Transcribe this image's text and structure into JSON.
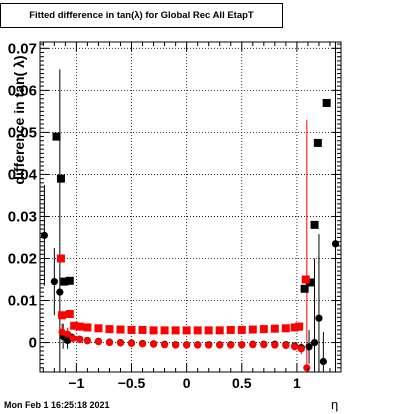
{
  "title": "Fitted difference in tan(λ) for Global Rec All EtapT",
  "footer": "Mon Feb  1 16:25:18 2021",
  "chart_data": {
    "type": "scatter",
    "title": "Fitted difference in tan(λ) for Global Rec All EtapT",
    "xlabel": "η",
    "ylabel": "difference in tan( λ)",
    "xlim": [
      -1.33,
      1.4
    ],
    "ylim": [
      -0.007,
      0.0715
    ],
    "xticks": [
      -1,
      -0.5,
      0,
      0.5,
      1
    ],
    "xtick_labels": [
      "−1",
      "−0.5",
      "0",
      "0.5",
      "1"
    ],
    "yticks": [
      0,
      0.01,
      0.02,
      0.03,
      0.04,
      0.05,
      0.06,
      0.07
    ],
    "ytick_labels": [
      "0",
      "0.01",
      "0.02",
      "0.03",
      "0.04",
      "0.05",
      "0.06",
      "0.07"
    ],
    "grid": true,
    "series": [
      {
        "color": "#000000",
        "marker": "square",
        "points": [
          [
            -1.18,
            0.049,
            0.0
          ],
          [
            -1.14,
            0.039,
            0.0
          ],
          [
            -1.11,
            0.0145,
            0.0
          ],
          [
            -1.06,
            0.0147,
            0.0
          ],
          [
            1.07,
            0.0128,
            0.0
          ],
          [
            1.12,
            0.0143,
            0.0
          ],
          [
            1.16,
            0.028,
            0.0
          ],
          [
            1.19,
            0.0475,
            0.0
          ],
          [
            1.27,
            0.057,
            0.0
          ]
        ]
      },
      {
        "color": "#ff0000",
        "marker": "square",
        "points": [
          [
            -1.14,
            0.02,
            0.0
          ],
          [
            -1.13,
            0.0065,
            0.0
          ],
          [
            -1.06,
            0.0068,
            0.0
          ],
          [
            -1.02,
            0.004,
            0.0
          ],
          [
            -0.97,
            0.0038,
            0.0
          ],
          [
            -0.9,
            0.0036,
            0.0
          ],
          [
            -0.8,
            0.0034,
            0.0
          ],
          [
            -0.7,
            0.0032,
            0.0
          ],
          [
            -0.6,
            0.0031,
            0.0
          ],
          [
            -0.5,
            0.003,
            0.0
          ],
          [
            -0.4,
            0.003,
            0.0
          ],
          [
            -0.3,
            0.0029,
            0.0
          ],
          [
            -0.2,
            0.0029,
            0.0
          ],
          [
            -0.1,
            0.0029,
            0.0
          ],
          [
            0.0,
            0.0029,
            0.0
          ],
          [
            0.1,
            0.0029,
            0.0
          ],
          [
            0.2,
            0.0029,
            0.0
          ],
          [
            0.3,
            0.0029,
            0.0
          ],
          [
            0.4,
            0.003,
            0.0
          ],
          [
            0.5,
            0.003,
            0.0
          ],
          [
            0.6,
            0.0031,
            0.0
          ],
          [
            0.7,
            0.0032,
            0.0
          ],
          [
            0.8,
            0.0033,
            0.0
          ],
          [
            0.9,
            0.0034,
            0.0
          ],
          [
            0.98,
            0.0036,
            0.0
          ],
          [
            1.02,
            0.0038,
            0.0
          ],
          [
            1.08,
            0.015,
            0.0
          ]
        ]
      },
      {
        "color": "#000000",
        "marker": "circle",
        "points": [
          [
            -1.29,
            0.0255,
            0.012
          ],
          [
            -1.2,
            0.0145,
            0.008
          ],
          [
            -1.15,
            0.012,
            0.053
          ],
          [
            -1.12,
            0.0015,
            0.003
          ],
          [
            -1.08,
            0.0005,
            0.002
          ],
          [
            -1.04,
            0.0012,
            0.001
          ],
          [
            -0.97,
            0.0008,
            0.0006
          ],
          [
            -0.9,
            0.0005,
            0.0005
          ],
          [
            -0.8,
            0.0003,
            0.0004
          ],
          [
            -0.7,
            0.0001,
            0.0004
          ],
          [
            -0.6,
            0.0,
            0.0004
          ],
          [
            -0.5,
            -0.0001,
            0.0004
          ],
          [
            -0.4,
            -0.0002,
            0.0004
          ],
          [
            -0.3,
            -0.0003,
            0.0004
          ],
          [
            -0.2,
            -0.0004,
            0.0004
          ],
          [
            -0.1,
            -0.0005,
            0.0004
          ],
          [
            0.0,
            -0.0005,
            0.0004
          ],
          [
            0.1,
            -0.0005,
            0.0004
          ],
          [
            0.2,
            -0.0005,
            0.0004
          ],
          [
            0.3,
            -0.0005,
            0.0004
          ],
          [
            0.4,
            -0.0005,
            0.0004
          ],
          [
            0.5,
            -0.0005,
            0.0004
          ],
          [
            0.6,
            -0.0004,
            0.0004
          ],
          [
            0.7,
            -0.0004,
            0.0004
          ],
          [
            0.8,
            -0.0004,
            0.0004
          ],
          [
            0.9,
            -0.0005,
            0.0005
          ],
          [
            0.98,
            -0.0008,
            0.0006
          ],
          [
            1.04,
            -0.0012,
            0.001
          ],
          [
            1.11,
            -0.001,
            0.004
          ],
          [
            1.16,
            0.0,
            0.02
          ],
          [
            1.2,
            0.0058,
            0.02
          ],
          [
            1.24,
            -0.0045,
            0.007
          ],
          [
            1.35,
            0.0235,
            0.05
          ]
        ]
      },
      {
        "color": "#ff0000",
        "marker": "circle",
        "points": [
          [
            -1.13,
            0.0025,
            0.002
          ],
          [
            -1.08,
            0.002,
            0.0015
          ],
          [
            -1.03,
            0.001,
            0.001
          ],
          [
            -0.97,
            0.0007,
            0.0006
          ],
          [
            -0.9,
            0.0004,
            0.0005
          ],
          [
            -0.8,
            0.0002,
            0.0004
          ],
          [
            -0.7,
            0.0,
            0.0004
          ],
          [
            -0.6,
            -0.0001,
            0.0004
          ],
          [
            -0.5,
            -0.0002,
            0.0004
          ],
          [
            -0.4,
            -0.0003,
            0.0004
          ],
          [
            -0.3,
            -0.0004,
            0.0004
          ],
          [
            -0.2,
            -0.0005,
            0.0004
          ],
          [
            -0.1,
            -0.0006,
            0.0004
          ],
          [
            0.0,
            -0.0006,
            0.0004
          ],
          [
            0.1,
            -0.0006,
            0.0004
          ],
          [
            0.2,
            -0.0006,
            0.0004
          ],
          [
            0.3,
            -0.0006,
            0.0004
          ],
          [
            0.4,
            -0.0006,
            0.0004
          ],
          [
            0.5,
            -0.0005,
            0.0004
          ],
          [
            0.6,
            -0.0005,
            0.0004
          ],
          [
            0.7,
            -0.0005,
            0.0004
          ],
          [
            0.8,
            -0.0006,
            0.0004
          ],
          [
            0.9,
            -0.0007,
            0.0005
          ],
          [
            0.98,
            -0.001,
            0.0007
          ],
          [
            1.04,
            -0.0015,
            0.0012
          ],
          [
            1.09,
            -0.006,
            0.059
          ]
        ]
      }
    ]
  }
}
